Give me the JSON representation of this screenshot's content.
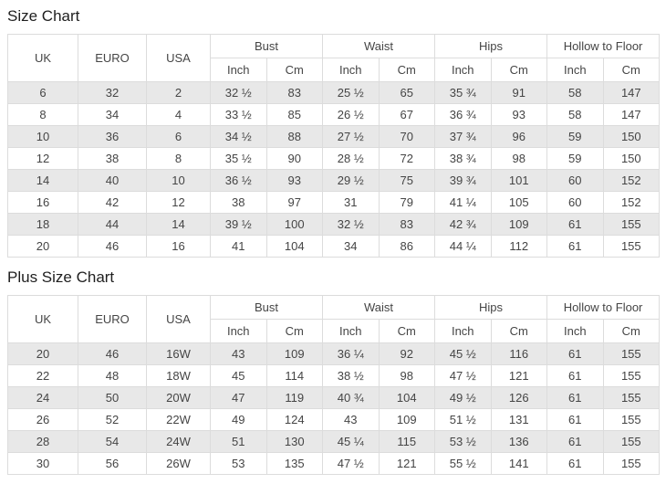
{
  "colors": {
    "stripe": "#e8e8e8",
    "border": "#dcdcdc",
    "text": "#454545",
    "title": "#1f1f1f",
    "background": "#ffffff"
  },
  "headers": {
    "uk": "UK",
    "euro": "EURO",
    "usa": "USA",
    "bust": "Bust",
    "waist": "Waist",
    "hips": "Hips",
    "hollow_to_floor": "Hollow to Floor",
    "inch": "Inch",
    "cm": "Cm"
  },
  "size_chart": {
    "title": "Size Chart",
    "rows": [
      [
        "6",
        "32",
        "2",
        "32 ½",
        "83",
        "25 ½",
        "65",
        "35 ¾",
        "91",
        "58",
        "147"
      ],
      [
        "8",
        "34",
        "4",
        "33 ½",
        "85",
        "26 ½",
        "67",
        "36 ¾",
        "93",
        "58",
        "147"
      ],
      [
        "10",
        "36",
        "6",
        "34 ½",
        "88",
        "27 ½",
        "70",
        "37 ¾",
        "96",
        "59",
        "150"
      ],
      [
        "12",
        "38",
        "8",
        "35 ½",
        "90",
        "28 ½",
        "72",
        "38 ¾",
        "98",
        "59",
        "150"
      ],
      [
        "14",
        "40",
        "10",
        "36 ½",
        "93",
        "29 ½",
        "75",
        "39 ¾",
        "101",
        "60",
        "152"
      ],
      [
        "16",
        "42",
        "12",
        "38",
        "97",
        "31",
        "79",
        "41 ¼",
        "105",
        "60",
        "152"
      ],
      [
        "18",
        "44",
        "14",
        "39 ½",
        "100",
        "32 ½",
        "83",
        "42 ¾",
        "109",
        "61",
        "155"
      ],
      [
        "20",
        "46",
        "16",
        "41",
        "104",
        "34",
        "86",
        "44 ¼",
        "112",
        "61",
        "155"
      ]
    ]
  },
  "plus_size_chart": {
    "title": "Plus Size Chart",
    "rows": [
      [
        "20",
        "46",
        "16W",
        "43",
        "109",
        "36 ¼",
        "92",
        "45 ½",
        "116",
        "61",
        "155"
      ],
      [
        "22",
        "48",
        "18W",
        "45",
        "114",
        "38 ½",
        "98",
        "47 ½",
        "121",
        "61",
        "155"
      ],
      [
        "24",
        "50",
        "20W",
        "47",
        "119",
        "40 ¾",
        "104",
        "49 ½",
        "126",
        "61",
        "155"
      ],
      [
        "26",
        "52",
        "22W",
        "49",
        "124",
        "43",
        "109",
        "51 ½",
        "131",
        "61",
        "155"
      ],
      [
        "28",
        "54",
        "24W",
        "51",
        "130",
        "45 ¼",
        "115",
        "53 ½",
        "136",
        "61",
        "155"
      ],
      [
        "30",
        "56",
        "26W",
        "53",
        "135",
        "47 ½",
        "121",
        "55 ½",
        "141",
        "61",
        "155"
      ]
    ]
  }
}
